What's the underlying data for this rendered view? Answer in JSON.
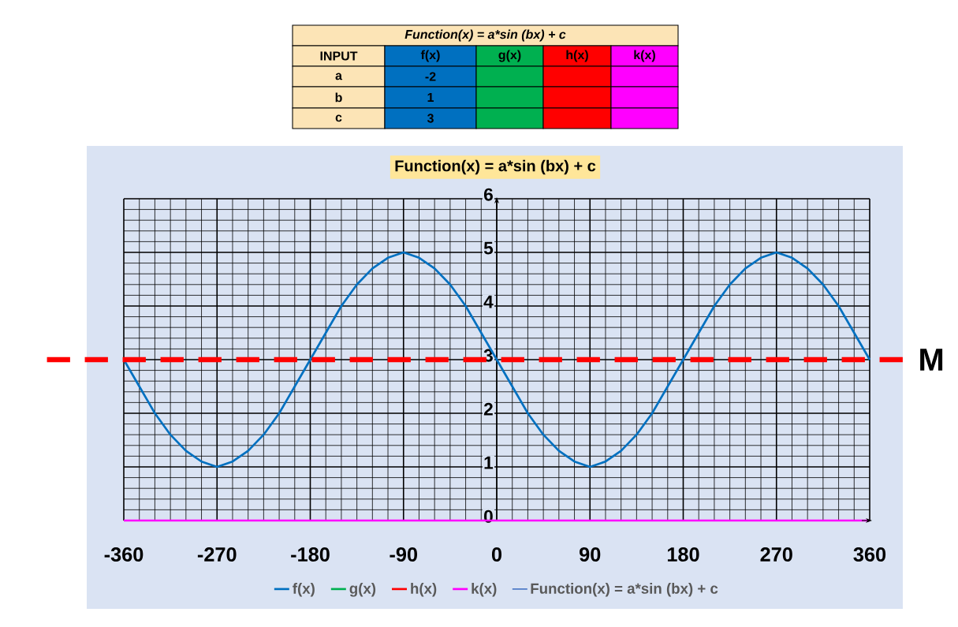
{
  "chart_data": {
    "type": "line",
    "title": "Function(x) = a*sin (bx) + c",
    "x": [
      -360,
      -345,
      -330,
      -315,
      -300,
      -285,
      -270,
      -255,
      -240,
      -225,
      -210,
      -195,
      -180,
      -165,
      -150,
      -135,
      -120,
      -105,
      -90,
      -75,
      -60,
      -45,
      -30,
      -15,
      0,
      15,
      30,
      45,
      60,
      75,
      90,
      105,
      120,
      135,
      150,
      165,
      180,
      195,
      210,
      225,
      240,
      255,
      270,
      285,
      300,
      315,
      330,
      345,
      360
    ],
    "series": [
      {
        "name": "f(x)",
        "color": "#0070c0",
        "values": [
          3,
          2.5,
          2,
          1.6,
          1.3,
          1.1,
          1,
          1.1,
          1.3,
          1.6,
          2,
          2.5,
          3,
          3.5,
          4,
          4.4,
          4.7,
          4.9,
          5,
          4.9,
          4.7,
          4.4,
          4,
          3.5,
          3,
          2.5,
          2,
          1.6,
          1.3,
          1.1,
          1,
          1.1,
          1.3,
          1.6,
          2,
          2.5,
          3,
          3.5,
          4,
          4.4,
          4.7,
          4.9,
          5,
          4.9,
          4.7,
          4.4,
          4,
          3.5,
          3
        ]
      },
      {
        "name": "g(x)",
        "color": "#00b050",
        "values": [
          null,
          null,
          null,
          null,
          null,
          null,
          null,
          null,
          null,
          null,
          null,
          null,
          null,
          null,
          null,
          null,
          null,
          null,
          null,
          null,
          null,
          null,
          null,
          null,
          null,
          null,
          null,
          null,
          null,
          null,
          null,
          null,
          null,
          null,
          null,
          null,
          null,
          null,
          null,
          null,
          null,
          null,
          null,
          null,
          null,
          null,
          null,
          null,
          null
        ]
      },
      {
        "name": "h(x)",
        "color": "#ff0000",
        "values": [
          null,
          null,
          null,
          null,
          null,
          null,
          null,
          null,
          null,
          null,
          null,
          null,
          null,
          null,
          null,
          null,
          null,
          null,
          null,
          null,
          null,
          null,
          null,
          null,
          null,
          null,
          null,
          null,
          null,
          null,
          null,
          null,
          null,
          null,
          null,
          null,
          null,
          null,
          null,
          null,
          null,
          null,
          null,
          null,
          null,
          null,
          null,
          null,
          null
        ]
      },
      {
        "name": "k(x)",
        "color": "#ff00ff",
        "values": [
          0,
          0,
          0,
          0,
          0,
          0,
          0,
          0,
          0,
          0,
          0,
          0,
          0,
          0,
          0,
          0,
          0,
          0,
          0,
          0,
          0,
          0,
          0,
          0,
          0,
          0,
          0,
          0,
          0,
          0,
          0,
          0,
          0,
          0,
          0,
          0,
          0,
          0,
          0,
          0,
          0,
          0,
          0,
          0,
          0,
          0,
          0,
          0,
          0
        ]
      },
      {
        "name": "Function(x) = a*sin (bx) + c",
        "color": "#4472c4",
        "values": [
          null,
          null,
          null,
          null,
          null,
          null,
          null,
          null,
          null,
          null,
          null,
          null,
          null,
          null,
          null,
          null,
          null,
          null,
          null,
          null,
          null,
          null,
          null,
          null,
          null,
          null,
          null,
          null,
          null,
          null,
          null,
          null,
          null,
          null,
          null,
          null,
          null,
          null,
          null,
          null,
          null,
          null,
          null,
          null,
          null,
          null,
          null,
          null,
          null
        ]
      }
    ],
    "xlim": [
      -360,
      360
    ],
    "xticks": [
      -360,
      -270,
      -180,
      -90,
      0,
      90,
      180,
      270,
      360
    ],
    "ylim": [
      0,
      6
    ],
    "yticks": [
      0,
      1,
      2,
      3,
      4,
      5,
      6
    ],
    "grid": true,
    "legend": "bottom",
    "marker": "none",
    "line_style": "solid",
    "ref_lines": [
      {
        "axis": "y",
        "value": 3,
        "label": "M",
        "color": "#ff0000",
        "line_style": "dashed"
      }
    ],
    "annotations": [
      "Function(x) = a*sin (bx) + c",
      "INPUT",
      "f(x)",
      "g(x)",
      "h(x)",
      "k(x)",
      "a",
      "-2",
      "b",
      "1",
      "c",
      "3"
    ]
  }
}
